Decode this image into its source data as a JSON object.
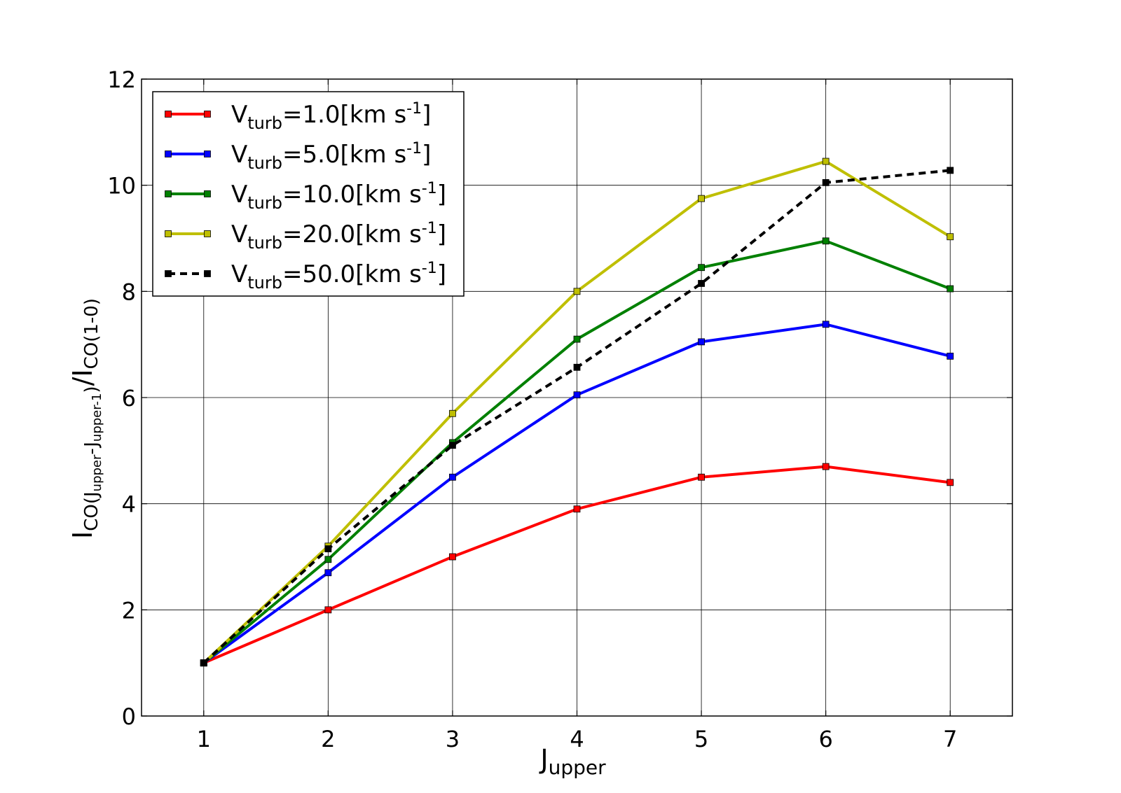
{
  "chart_data": {
    "type": "line",
    "title": "",
    "xlabel": {
      "main": "J",
      "sub": "upper"
    },
    "ylabel": {
      "main1": "I",
      "sub1": "CO(J",
      "sub1b": "upper",
      "sub1c": "-J",
      "sub1d": "upper-1",
      "sub1e": ")",
      "main2": "/I",
      "sub2": "CO(1-0)"
    },
    "x": [
      1,
      2,
      3,
      4,
      5,
      6,
      7
    ],
    "xlim": [
      0.5,
      7.5
    ],
    "ylim": [
      0,
      12
    ],
    "xticks": [
      1,
      2,
      3,
      4,
      5,
      6,
      7
    ],
    "yticks": [
      0,
      2,
      4,
      6,
      8,
      10,
      12
    ],
    "grid": true,
    "legend_position": "top-left",
    "series": [
      {
        "name": "V",
        "name_sub": "turb",
        "name_rest": "=1.0[km s",
        "name_sup": "-1",
        "name_end": "]",
        "color": "#ff0000",
        "dashed": false,
        "values": [
          1.0,
          2.0,
          3.0,
          3.9,
          4.5,
          4.7,
          4.4
        ]
      },
      {
        "name": "V",
        "name_sub": "turb",
        "name_rest": "=5.0[km s",
        "name_sup": "-1",
        "name_end": "]",
        "color": "#0000ff",
        "dashed": false,
        "values": [
          1.0,
          2.7,
          4.5,
          6.05,
          7.05,
          7.38,
          6.78
        ]
      },
      {
        "name": "V",
        "name_sub": "turb",
        "name_rest": "=10.0[km s",
        "name_sup": "-1",
        "name_end": "]",
        "color": "#008000",
        "dashed": false,
        "values": [
          1.0,
          2.95,
          5.15,
          7.1,
          8.45,
          8.95,
          8.05
        ]
      },
      {
        "name": "V",
        "name_sub": "turb",
        "name_rest": "=20.0[km s",
        "name_sup": "-1",
        "name_end": "]",
        "color": "#bfbf00",
        "dashed": false,
        "values": [
          1.0,
          3.2,
          5.7,
          8.0,
          9.75,
          10.45,
          9.03
        ]
      },
      {
        "name": "V",
        "name_sub": "turb",
        "name_rest": "=50.0[km s",
        "name_sup": "-1",
        "name_end": "]",
        "color": "#000000",
        "dashed": true,
        "values": [
          1.0,
          3.15,
          5.1,
          6.57,
          8.15,
          10.05,
          10.28
        ]
      }
    ]
  }
}
